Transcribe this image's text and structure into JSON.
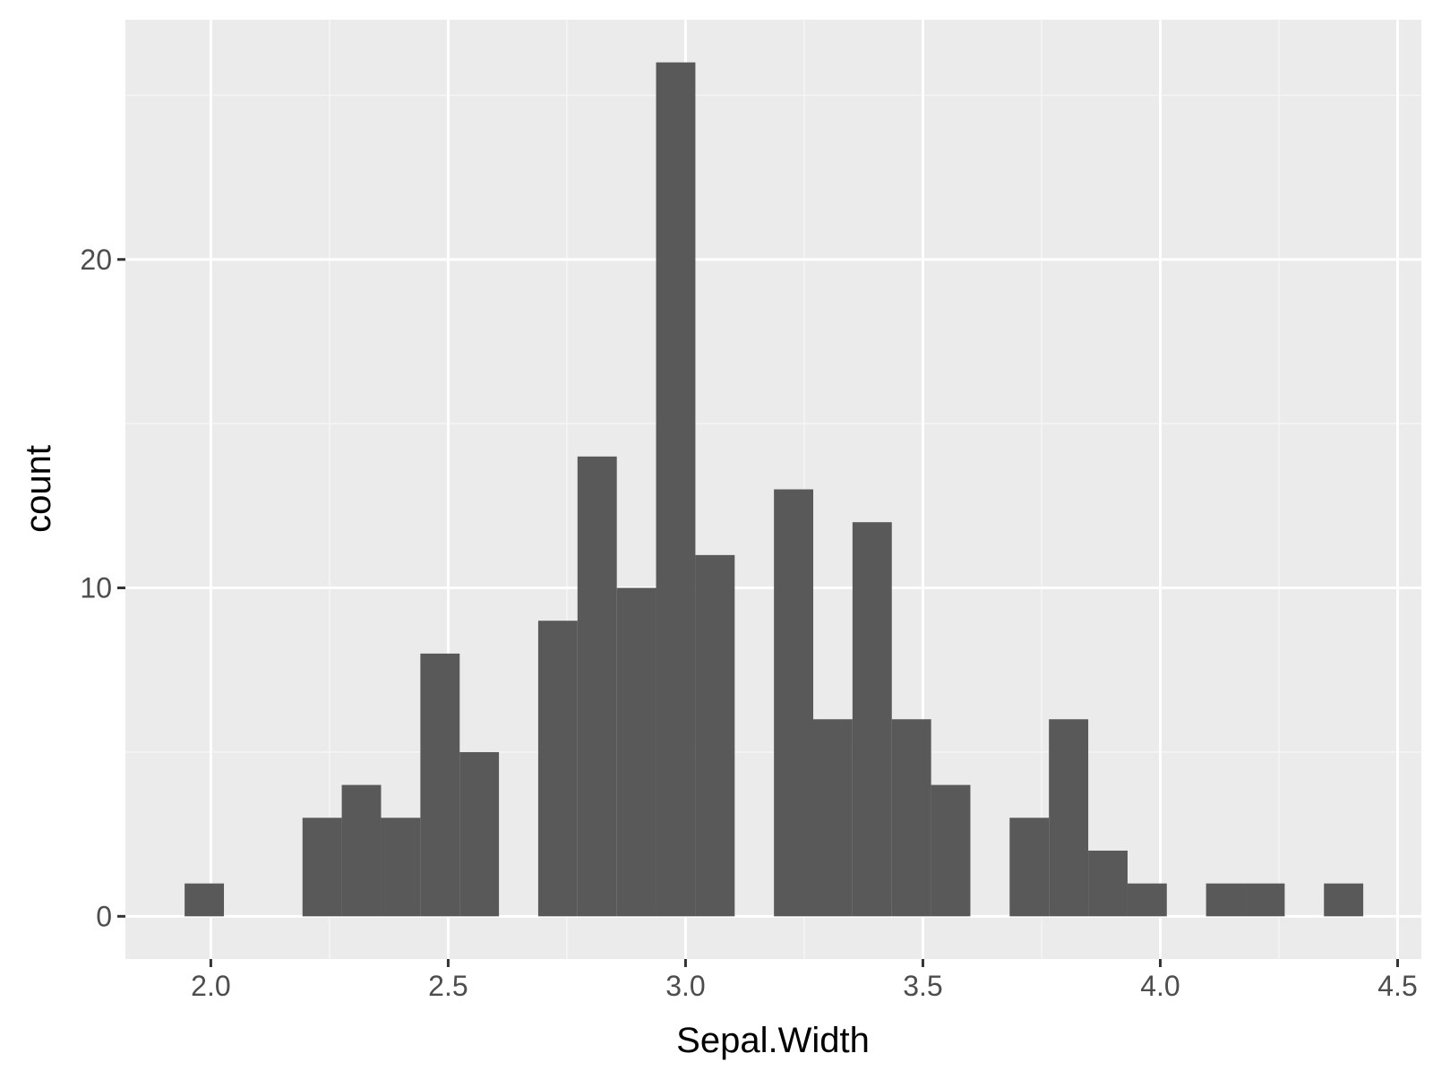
{
  "colors": {
    "panel_background": "#ebebeb",
    "grid_major": "#ffffff",
    "grid_minor": "#f5f5f5",
    "bar_fill": "#595959",
    "axis_text": "#4d4d4d",
    "axis_title": "#000000",
    "tick": "#333333"
  },
  "chart_data": {
    "type": "bar",
    "title": "",
    "xlabel": "Sepal.Width",
    "ylabel": "count",
    "xlim": [
      1.82,
      4.55
    ],
    "ylim": [
      -1.3,
      27.3
    ],
    "x_ticks": [
      {
        "value": 2.0,
        "label": "2.0"
      },
      {
        "value": 2.5,
        "label": "2.5"
      },
      {
        "value": 3.0,
        "label": "3.0"
      },
      {
        "value": 3.5,
        "label": "3.5"
      },
      {
        "value": 4.0,
        "label": "4.0"
      },
      {
        "value": 4.5,
        "label": "4.5"
      }
    ],
    "y_ticks": [
      {
        "value": 0,
        "label": "0"
      },
      {
        "value": 10,
        "label": "10"
      },
      {
        "value": 20,
        "label": "20"
      }
    ],
    "x_minor_ticks": [
      2.25,
      2.75,
      3.25,
      3.75,
      4.25
    ],
    "y_minor_ticks": [
      5,
      15,
      25
    ],
    "grid": true,
    "legend": "none",
    "bin_width": 0.0828,
    "bin_centers": [
      1.9862,
      2.069,
      2.1517,
      2.2345,
      2.3172,
      2.4,
      2.4828,
      2.5655,
      2.6483,
      2.731,
      2.8138,
      2.8966,
      2.9793,
      3.0621,
      3.1448,
      3.2276,
      3.3103,
      3.3931,
      3.4759,
      3.5586,
      3.6414,
      3.7241,
      3.8069,
      3.8897,
      3.9724,
      4.0552,
      4.1379,
      4.2207,
      4.3034,
      4.3862
    ],
    "values": [
      1,
      0,
      0,
      3,
      4,
      3,
      8,
      5,
      0,
      9,
      14,
      10,
      26,
      11,
      0,
      13,
      6,
      12,
      6,
      4,
      0,
      3,
      6,
      2,
      1,
      0,
      1,
      1,
      0,
      1
    ]
  }
}
